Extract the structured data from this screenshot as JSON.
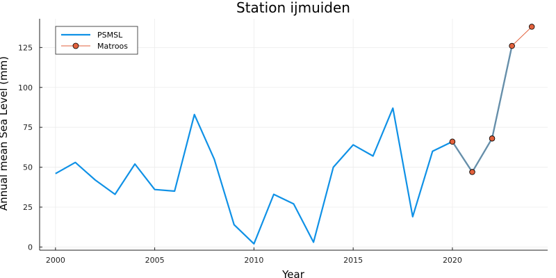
{
  "chart_data": {
    "type": "line",
    "title": "Station ijmuiden",
    "xlabel": "Year",
    "ylabel": "Annual mean Sea Level (mm)",
    "xlim": [
      1999.2,
      2024.8
    ],
    "ylim": [
      -2,
      143
    ],
    "xticks": [
      2000,
      2005,
      2010,
      2015,
      2020
    ],
    "yticks": [
      0,
      25,
      50,
      75,
      100,
      125
    ],
    "grid": true,
    "legend_position": "top-left",
    "series": [
      {
        "name": "PSMSL",
        "color": "#0f91e6",
        "marker": "none",
        "x": [
          2000,
          2001,
          2002,
          2003,
          2004,
          2005,
          2006,
          2007,
          2008,
          2009,
          2010,
          2011,
          2012,
          2013,
          2014,
          2015,
          2016,
          2017,
          2018,
          2019,
          2020,
          2021,
          2022,
          2023
        ],
        "y": [
          46,
          53,
          42,
          33,
          52,
          36,
          35,
          83,
          55,
          14,
          2,
          33,
          27,
          3,
          50,
          64,
          57,
          87,
          19,
          60,
          66,
          47,
          68,
          126
        ]
      },
      {
        "name": "Matroos",
        "color": "#e2613c",
        "marker": "circle",
        "x": [
          2020,
          2021,
          2022,
          2023,
          2024
        ],
        "y": [
          66,
          47,
          68,
          126,
          138
        ]
      }
    ]
  }
}
